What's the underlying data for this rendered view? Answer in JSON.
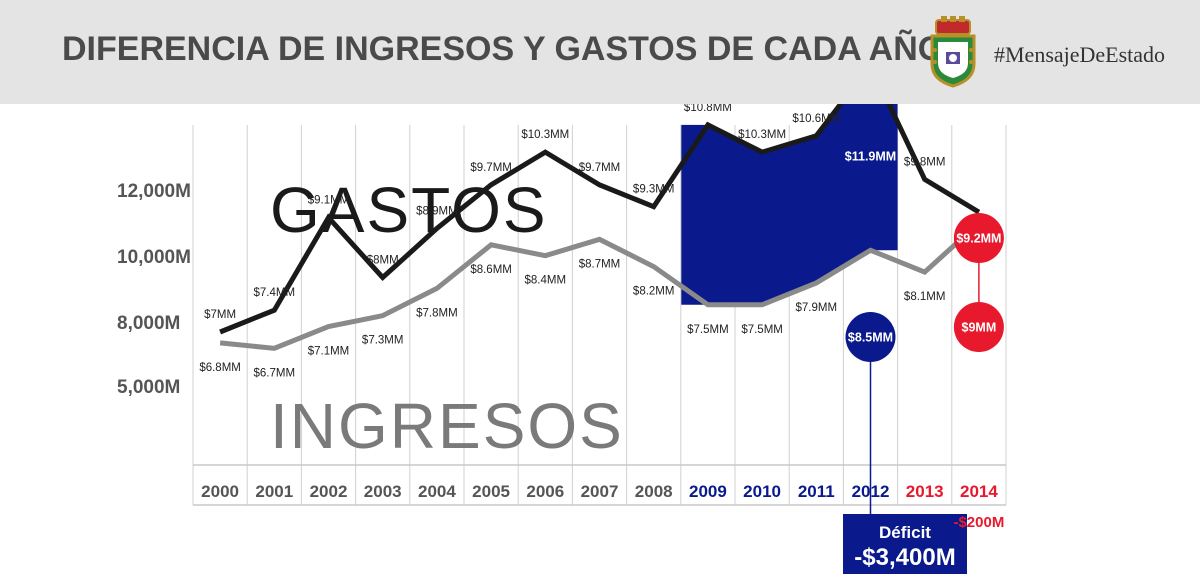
{
  "header": {
    "title": "DIFERENCIA DE INGRESOS Y GASTOS DE CADA AÑO",
    "hashtag": "#MensajeDeEstado",
    "crest_icon": "puerto-rico-coat-of-arms-icon",
    "background": "#e4e4e4"
  },
  "colors": {
    "gastos": "#1a1a1a",
    "ingresos": "#8a8a8a",
    "deficit_fill": "#0a1a8c",
    "highlight_blue": "#0a1a8c",
    "highlight_red": "#e8192c",
    "axis_text": "#555555"
  },
  "chart_data": {
    "type": "line",
    "categories": [
      "2000",
      "2001",
      "2002",
      "2003",
      "2004",
      "2005",
      "2006",
      "2007",
      "2008",
      "2009",
      "2010",
      "2011",
      "2012",
      "2013",
      "2014"
    ],
    "category_colors": [
      "#555555",
      "#555555",
      "#555555",
      "#555555",
      "#555555",
      "#555555",
      "#555555",
      "#555555",
      "#555555",
      "#0a1a8c",
      "#0a1a8c",
      "#0a1a8c",
      "#0a1a8c",
      "#e8192c",
      "#e8192c"
    ],
    "yticks": [
      "12,000M",
      "10,000M",
      "8,000M",
      "5,000M"
    ],
    "series": [
      {
        "name": "GASTOS",
        "values": [
          7.0,
          7.4,
          9.1,
          8.0,
          8.9,
          9.7,
          10.3,
          9.7,
          9.3,
          10.8,
          10.3,
          10.6,
          11.9,
          9.8,
          9.2
        ],
        "labels": [
          "$7MM",
          "$7.4MM",
          "$9.1MM",
          "$8MM",
          "$8.9MM",
          "$9.7MM",
          "$10.3MM",
          "$9.7MM",
          "$9.3MM",
          "$10.8MM",
          "$10.3MM",
          "$10.6MM",
          "$11.9MM",
          "$9.8MM",
          "$9.2MM"
        ]
      },
      {
        "name": "INGRESOS",
        "values": [
          6.8,
          6.7,
          7.1,
          7.3,
          7.8,
          8.6,
          8.4,
          8.7,
          8.2,
          7.5,
          7.5,
          7.9,
          8.5,
          8.1,
          9.0
        ],
        "labels": [
          "$6.8MM",
          "$6.7MM",
          "$7.1MM",
          "$7.3MM",
          "$7.8MM",
          "$8.6MM",
          "$8.4MM",
          "$8.7MM",
          "$8.2MM",
          "$7.5MM",
          "$7.5MM",
          "$7.9MM",
          "$8.5MM",
          "$8.1MM",
          "$9MM"
        ]
      }
    ],
    "shaded_range": [
      "2009",
      "2012"
    ],
    "highlights": [
      {
        "category": "2012",
        "series": "GASTOS",
        "label": "$11.9MM",
        "color": "#0a1a8c"
      },
      {
        "category": "2012",
        "series": "INGRESOS",
        "label": "$8.5MM",
        "color": "#0a1a8c"
      },
      {
        "category": "2014",
        "series": "GASTOS",
        "label": "$9.2MM",
        "color": "#e8192c"
      },
      {
        "category": "2014",
        "series": "INGRESOS",
        "label": "$9MM",
        "color": "#e8192c"
      }
    ],
    "annotations": {
      "deficit_label": "Déficit",
      "deficit_value": "-$3,400M",
      "deficit_category": "2012",
      "deficit_2014": "-$200M"
    },
    "grid": "vertical",
    "legend": "none"
  }
}
